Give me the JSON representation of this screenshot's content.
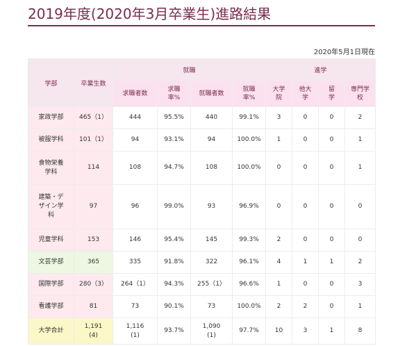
{
  "title": "2019年度(2020年3月卒業生)進路結果",
  "as_of": "2020年5月1日現在",
  "headers": {
    "department": "学部",
    "graduates": "卒業生数",
    "employment_group": "就職",
    "further_study_group": "進学",
    "applicants": "求職者数",
    "applicant_rate": "求職\n率%",
    "employed": "就職者数",
    "employment_rate": "就職\n率%",
    "university_grad_school": "大学\n院",
    "other_university": "他大\n学",
    "study_abroad": "留\n学",
    "vocational_school": "専門学\n校"
  },
  "rows": [
    {
      "dept": "家政学部",
      "grads": "465（1）",
      "applicants": "444",
      "app_rate": "95.5%",
      "employed": "440",
      "emp_rate": "99.1%",
      "grad_school": "3",
      "other_univ": "0",
      "abroad": "0",
      "vocational": "2",
      "style": "pink"
    },
    {
      "dept": "被服学科",
      "grads": "101（1）",
      "applicants": "94",
      "app_rate": "93.1%",
      "employed": "94",
      "emp_rate": "100.0%",
      "grad_school": "1",
      "other_univ": "0",
      "abroad": "0",
      "vocational": "1",
      "style": "pink"
    },
    {
      "dept": "食物栄養\n学科",
      "grads": "114",
      "applicants": "108",
      "app_rate": "94.7%",
      "employed": "108",
      "emp_rate": "100.0%",
      "grad_school": "0",
      "other_univ": "0",
      "abroad": "0",
      "vocational": "1",
      "style": "pink"
    },
    {
      "dept": "建築・デ\nザイン学\n科",
      "grads": "97",
      "applicants": "96",
      "app_rate": "99.0%",
      "employed": "93",
      "emp_rate": "96.9%",
      "grad_school": "0",
      "other_univ": "0",
      "abroad": "0",
      "vocational": "0",
      "style": "pink"
    },
    {
      "dept": "児童学科",
      "grads": "153",
      "applicants": "146",
      "app_rate": "95.4%",
      "employed": "145",
      "emp_rate": "99.3%",
      "grad_school": "2",
      "other_univ": "0",
      "abroad": "0",
      "vocational": "0",
      "style": "pink"
    },
    {
      "dept": "文芸学部",
      "grads": "365",
      "applicants": "335",
      "app_rate": "91.8%",
      "employed": "322",
      "emp_rate": "96.1%",
      "grad_school": "4",
      "other_univ": "1",
      "abroad": "1",
      "vocational": "2",
      "style": "green"
    },
    {
      "dept": "国際学部",
      "grads": "280（3）",
      "applicants": "264（1）",
      "app_rate": "94.3%",
      "employed": "255（1）",
      "emp_rate": "96.6%",
      "grad_school": "1",
      "other_univ": "0",
      "abroad": "0",
      "vocational": "3",
      "style": "pink"
    },
    {
      "dept": "看護学部",
      "grads": "81",
      "applicants": "73",
      "app_rate": "90.1%",
      "employed": "73",
      "emp_rate": "100.0%",
      "grad_school": "2",
      "other_univ": "2",
      "abroad": "0",
      "vocational": "1",
      "style": "pink"
    },
    {
      "dept": "大学合計",
      "grads": "1,191\n(4)",
      "applicants": "1,116\n(1)",
      "app_rate": "93.7%",
      "employed": "1,090\n(1)",
      "emp_rate": "97.7%",
      "grad_school": "10",
      "other_univ": "3",
      "abroad": "1",
      "vocational": "8",
      "style": "total"
    }
  ]
}
